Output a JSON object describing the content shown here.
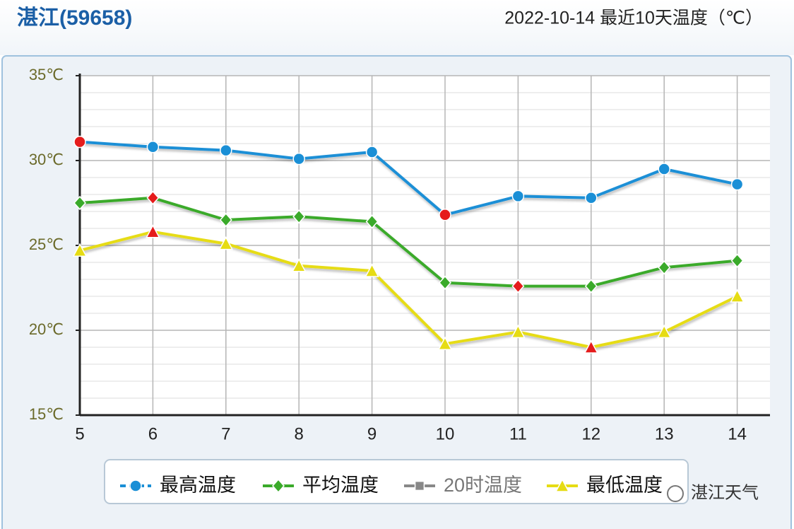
{
  "chart_data": {
    "type": "line",
    "station": "湛江(59658)",
    "title": "2022-10-14 最近10天温度（℃）",
    "categories": [
      "5",
      "6",
      "7",
      "8",
      "9",
      "10",
      "11",
      "12",
      "13",
      "14"
    ],
    "series": [
      {
        "name": "最高温度",
        "color": "#1a8fd6",
        "marker": "circle",
        "values": [
          31.1,
          30.8,
          30.6,
          30.1,
          30.5,
          26.8,
          27.9,
          27.8,
          29.5,
          28.6
        ]
      },
      {
        "name": "平均温度",
        "color": "#3aaa2a",
        "marker": "diamond",
        "values": [
          27.5,
          27.8,
          26.5,
          26.7,
          26.4,
          22.8,
          22.6,
          22.6,
          23.7,
          24.1
        ]
      },
      {
        "name": "20时温度",
        "color": "#888888",
        "marker": "square",
        "values": [
          null,
          null,
          null,
          null,
          null,
          null,
          null,
          null,
          null,
          null
        ]
      },
      {
        "name": "最低温度",
        "color": "#e6dc14",
        "marker": "triangle",
        "values": [
          24.7,
          25.8,
          25.1,
          23.8,
          23.5,
          19.2,
          19.9,
          19.0,
          19.9,
          22.0
        ]
      }
    ],
    "highlight_color": "#e51c1c",
    "ylim": [
      15,
      35
    ],
    "yticks": [
      {
        "value": 15,
        "label": "15℃"
      },
      {
        "value": 20,
        "label": "20℃"
      },
      {
        "value": 25,
        "label": "25℃"
      },
      {
        "value": 30,
        "label": "30℃"
      },
      {
        "value": 35,
        "label": "35℃"
      }
    ],
    "minor_yticks": [
      16,
      17,
      18,
      19,
      21,
      22,
      23,
      24,
      26,
      27,
      28,
      29,
      31,
      32,
      33,
      34
    ],
    "grid": true,
    "legend": "bottom",
    "watermark": "湛江天气"
  }
}
